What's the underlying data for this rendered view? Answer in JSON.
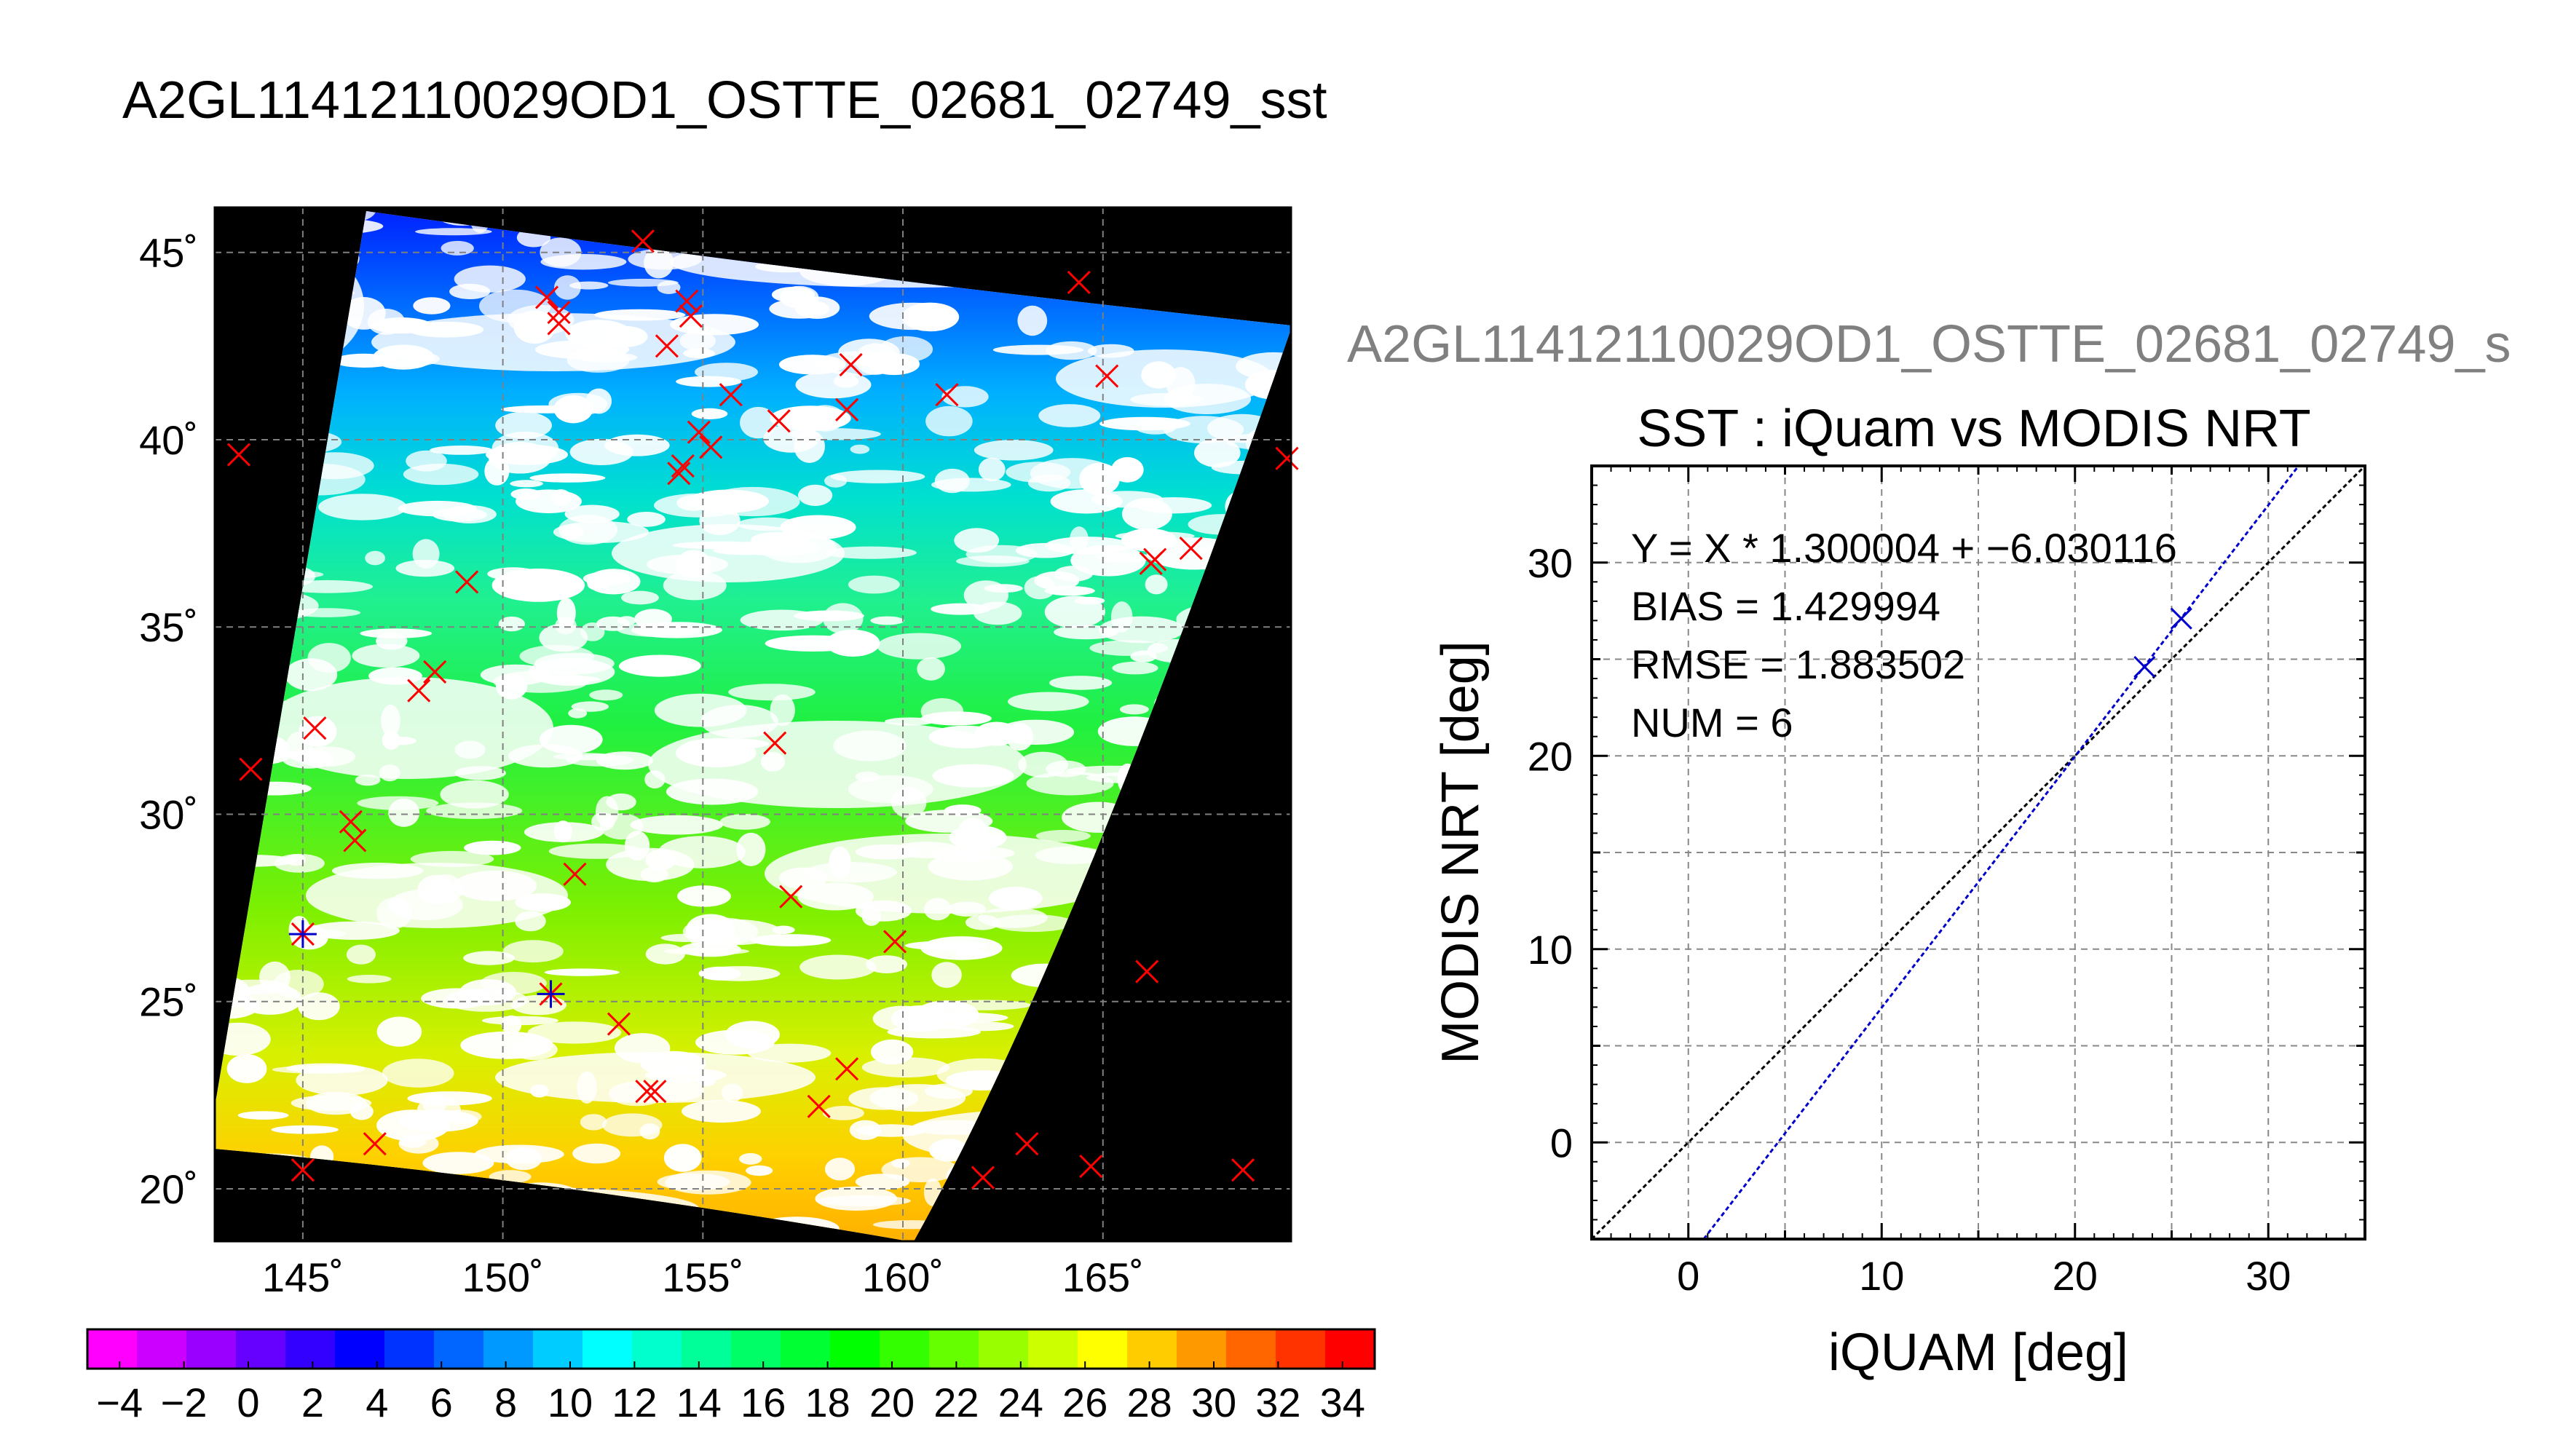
{
  "figure": {
    "main_title": "A2GL11412110029OD1_OSTTE_02681_02749_sst",
    "secondary_title": "A2GL11412110029OD1_OSTTE_02681_02749_s"
  },
  "map": {
    "lon_range": [
      142.8,
      169.7
    ],
    "lat_range": [
      18.6,
      46.2
    ],
    "lon_ticks": [
      145,
      150,
      155,
      160,
      165
    ],
    "lon_tick_labels": [
      "145˚",
      "150˚",
      "155˚",
      "160˚",
      "165˚"
    ],
    "lat_ticks": [
      20,
      25,
      30,
      35,
      40,
      45
    ],
    "lat_tick_labels": [
      "20˚",
      "25˚",
      "30˚",
      "35˚",
      "40˚",
      "45˚"
    ],
    "marker_color": "#ff0000",
    "matched_marker_color": "#0000cc",
    "markers": [
      {
        "lon": 143.4,
        "lat": 39.6
      },
      {
        "lon": 143.7,
        "lat": 31.2
      },
      {
        "lon": 145.3,
        "lat": 32.3
      },
      {
        "lon": 145.0,
        "lat": 26.8,
        "matched": true
      },
      {
        "lon": 145.0,
        "lat": 20.5
      },
      {
        "lon": 146.2,
        "lat": 29.8
      },
      {
        "lon": 146.3,
        "lat": 29.3
      },
      {
        "lon": 146.8,
        "lat": 21.2
      },
      {
        "lon": 147.9,
        "lat": 33.3
      },
      {
        "lon": 148.3,
        "lat": 33.8
      },
      {
        "lon": 149.1,
        "lat": 36.2
      },
      {
        "lon": 151.1,
        "lat": 43.8
      },
      {
        "lon": 151.4,
        "lat": 43.4
      },
      {
        "lon": 151.4,
        "lat": 43.1
      },
      {
        "lon": 151.2,
        "lat": 25.2,
        "matched": true
      },
      {
        "lon": 151.8,
        "lat": 28.4
      },
      {
        "lon": 152.9,
        "lat": 24.4
      },
      {
        "lon": 153.5,
        "lat": 45.3
      },
      {
        "lon": 153.6,
        "lat": 22.6
      },
      {
        "lon": 153.8,
        "lat": 22.6
      },
      {
        "lon": 154.1,
        "lat": 42.5
      },
      {
        "lon": 154.4,
        "lat": 39.1
      },
      {
        "lon": 154.5,
        "lat": 39.3
      },
      {
        "lon": 154.6,
        "lat": 43.7
      },
      {
        "lon": 154.7,
        "lat": 43.3
      },
      {
        "lon": 154.9,
        "lat": 40.2
      },
      {
        "lon": 155.2,
        "lat": 39.8
      },
      {
        "lon": 155.7,
        "lat": 41.2
      },
      {
        "lon": 156.9,
        "lat": 40.5
      },
      {
        "lon": 156.8,
        "lat": 31.9
      },
      {
        "lon": 157.2,
        "lat": 27.8
      },
      {
        "lon": 157.9,
        "lat": 22.2
      },
      {
        "lon": 158.7,
        "lat": 42.0
      },
      {
        "lon": 158.6,
        "lat": 40.8
      },
      {
        "lon": 158.6,
        "lat": 23.2
      },
      {
        "lon": 159.8,
        "lat": 26.6
      },
      {
        "lon": 161.1,
        "lat": 41.2
      },
      {
        "lon": 162.0,
        "lat": 20.3
      },
      {
        "lon": 163.1,
        "lat": 21.2
      },
      {
        "lon": 164.4,
        "lat": 44.2
      },
      {
        "lon": 164.7,
        "lat": 20.6
      },
      {
        "lon": 165.1,
        "lat": 41.7
      },
      {
        "lon": 166.2,
        "lat": 36.7
      },
      {
        "lon": 166.3,
        "lat": 36.8
      },
      {
        "lon": 166.1,
        "lat": 25.8
      },
      {
        "lon": 167.2,
        "lat": 37.1
      },
      {
        "lon": 168.5,
        "lat": 20.5
      },
      {
        "lon": 169.6,
        "lat": 39.5
      }
    ]
  },
  "colorbar": {
    "tick_values": [
      -4,
      -2,
      0,
      2,
      4,
      6,
      8,
      10,
      12,
      14,
      16,
      18,
      20,
      22,
      24,
      26,
      28,
      30,
      32,
      34
    ],
    "tick_labels": [
      "−4",
      "−2",
      "0",
      "2",
      "4",
      "6",
      "8",
      "10",
      "12",
      "14",
      "16",
      "18",
      "20",
      "22",
      "24",
      "26",
      "28",
      "30",
      "32",
      "34"
    ],
    "range": [
      -5,
      35
    ],
    "colors": [
      "#ff00ff",
      "#cc00ff",
      "#9900ff",
      "#6600ff",
      "#3300ff",
      "#0000ff",
      "#0033ff",
      "#0066ff",
      "#0099ff",
      "#00ccff",
      "#00ffff",
      "#00ffcc",
      "#00ff99",
      "#00ff66",
      "#00ff33",
      "#00ff00",
      "#33ff00",
      "#66ff00",
      "#99ff00",
      "#ccff00",
      "#ffff00",
      "#ffcc00",
      "#ff9900",
      "#ff6600",
      "#ff3300",
      "#ff0000"
    ]
  },
  "chart_data": {
    "type": "scatter",
    "title": "SST : iQuam vs MODIS NRT",
    "xlabel": "iQUAM [deg]",
    "ylabel": "MODIS NRT [deg]",
    "xlim": [
      -5,
      35
    ],
    "ylim": [
      -5,
      35
    ],
    "xticks": [
      0,
      10,
      20,
      30
    ],
    "yticks": [
      0,
      10,
      20,
      30
    ],
    "grid": true,
    "stats": [
      "Y = X * 1.300004 + −6.030116",
      "BIAS = 1.429994",
      "RMSE = 1.883502",
      "NUM = 6"
    ],
    "fit": {
      "slope": 1.300004,
      "intercept": -6.030116,
      "color": "#0000cc"
    },
    "identity_line": {
      "color": "#000000"
    },
    "points": [
      {
        "x": 23.6,
        "y": 24.6
      },
      {
        "x": 25.5,
        "y": 27.1
      }
    ],
    "point_color": "#0000cc"
  }
}
